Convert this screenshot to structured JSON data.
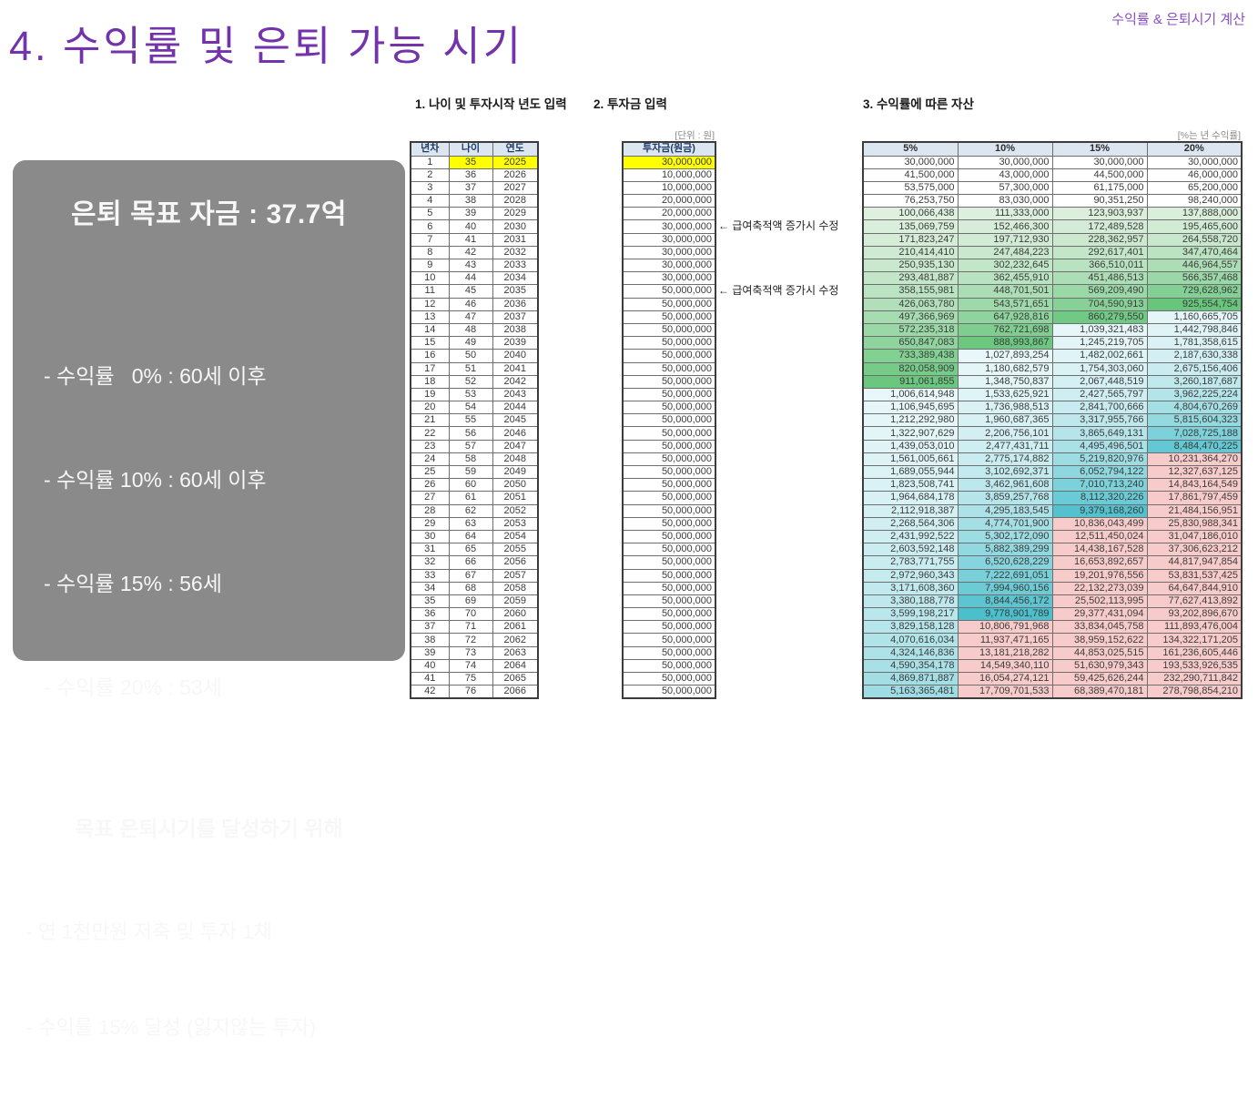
{
  "header": {
    "title": "4. 수익률 및 은퇴 가능 시기",
    "corner_note": "수익률 & 은퇴시기 계산",
    "accent_color": "#7233ab"
  },
  "sections": {
    "s1": "1. 나이 및 투자시작 년도 입력",
    "s2": "2. 투자금 입력",
    "s3": "3. 수익률에 따른 자산"
  },
  "labels": {
    "unit_won": "[단위 : 원]",
    "unit_rate": "[%는 년 수익률]"
  },
  "summary": {
    "goal": "은퇴 목표 자금 : 37.7억",
    "bullets": [
      "- 수익률   0% : 60세 이후",
      "- 수익률 10% : 60세 이후",
      "- 수익률 15% : 56세",
      "- 수익률 20% : 53세"
    ],
    "subtitle": "목표 은퇴시기를 달성하기 위해",
    "sub_bullets": [
      "- 연 1천만원 저축 및 투자 1채",
      "- 수익률 15% 달성 (잃지않는 투자)"
    ]
  },
  "table1": {
    "headers": [
      "년차",
      "나이",
      "연도"
    ],
    "highlight_row": 1,
    "rows": [
      [
        1,
        35,
        2025
      ],
      [
        2,
        36,
        2026
      ],
      [
        3,
        37,
        2027
      ],
      [
        4,
        38,
        2028
      ],
      [
        5,
        39,
        2029
      ],
      [
        6,
        40,
        2030
      ],
      [
        7,
        41,
        2031
      ],
      [
        8,
        42,
        2032
      ],
      [
        9,
        43,
        2033
      ],
      [
        10,
        44,
        2034
      ],
      [
        11,
        45,
        2035
      ],
      [
        12,
        46,
        2036
      ],
      [
        13,
        47,
        2037
      ],
      [
        14,
        48,
        2038
      ],
      [
        15,
        49,
        2039
      ],
      [
        16,
        50,
        2040
      ],
      [
        17,
        51,
        2041
      ],
      [
        18,
        52,
        2042
      ],
      [
        19,
        53,
        2043
      ],
      [
        20,
        54,
        2044
      ],
      [
        21,
        55,
        2045
      ],
      [
        22,
        56,
        2046
      ],
      [
        23,
        57,
        2047
      ],
      [
        24,
        58,
        2048
      ],
      [
        25,
        59,
        2049
      ],
      [
        26,
        60,
        2050
      ],
      [
        27,
        61,
        2051
      ],
      [
        28,
        62,
        2052
      ],
      [
        29,
        63,
        2053
      ],
      [
        30,
        64,
        2054
      ],
      [
        31,
        65,
        2055
      ],
      [
        32,
        66,
        2056
      ],
      [
        33,
        67,
        2057
      ],
      [
        34,
        68,
        2058
      ],
      [
        35,
        69,
        2059
      ],
      [
        36,
        70,
        2060
      ],
      [
        37,
        71,
        2061
      ],
      [
        38,
        72,
        2062
      ],
      [
        39,
        73,
        2063
      ],
      [
        40,
        74,
        2064
      ],
      [
        41,
        75,
        2065
      ],
      [
        42,
        76,
        2066
      ]
    ]
  },
  "table2": {
    "header": "투자금(원금)",
    "highlight_row": 1,
    "values": [
      30000000,
      10000000,
      10000000,
      20000000,
      20000000,
      30000000,
      30000000,
      30000000,
      30000000,
      30000000,
      50000000,
      50000000,
      50000000,
      50000000,
      50000000,
      50000000,
      50000000,
      50000000,
      50000000,
      50000000,
      50000000,
      50000000,
      50000000,
      50000000,
      50000000,
      50000000,
      50000000,
      50000000,
      50000000,
      50000000,
      50000000,
      50000000,
      50000000,
      50000000,
      50000000,
      50000000,
      50000000,
      50000000,
      50000000,
      50000000,
      50000000,
      50000000
    ]
  },
  "annotations": [
    {
      "text": "← 급여축적액 증가시 수정",
      "row": 6
    },
    {
      "text": "← 급여축적액 증가시 수정",
      "row": 11
    }
  ],
  "table3": {
    "headers": [
      "5%",
      "10%",
      "15%",
      "20%"
    ],
    "rows": [
      [
        30000000,
        30000000,
        30000000,
        30000000
      ],
      [
        41500000,
        43000000,
        44500000,
        46000000
      ],
      [
        53575000,
        57300000,
        61175000,
        65200000
      ],
      [
        76253750,
        83030000,
        90351250,
        98240000
      ],
      [
        100066438,
        111333000,
        123903937,
        137888000
      ],
      [
        135069759,
        152466300,
        172489528,
        195465600
      ],
      [
        171823247,
        197712930,
        228362957,
        264558720
      ],
      [
        210414410,
        247484223,
        292617401,
        347470464
      ],
      [
        250935130,
        302232645,
        366510011,
        446964557
      ],
      [
        293481887,
        362455910,
        451486513,
        566357468
      ],
      [
        358155981,
        448701501,
        569209490,
        729628962
      ],
      [
        426063780,
        543571651,
        704590913,
        925554754
      ],
      [
        497366969,
        647928816,
        860279550,
        1160665705
      ],
      [
        572235318,
        762721698,
        1039321483,
        1442798846
      ],
      [
        650847083,
        888993867,
        1245219705,
        1781358615
      ],
      [
        733389438,
        1027893254,
        1482002661,
        2187630338
      ],
      [
        820058909,
        1180682579,
        1754303060,
        2675156406
      ],
      [
        911061855,
        1348750837,
        2067448519,
        3260187687
      ],
      [
        1006614948,
        1533625921,
        2427565797,
        3962225224
      ],
      [
        1106945695,
        1736988513,
        2841700666,
        4804670269
      ],
      [
        1212292980,
        1960687365,
        3317955766,
        5815604323
      ],
      [
        1322907629,
        2206756101,
        3865649131,
        7028725188
      ],
      [
        1439053010,
        2477431711,
        4495496501,
        8484470225
      ],
      [
        1561005661,
        2775174882,
        5219820976,
        10231364270
      ],
      [
        1689055944,
        3102692371,
        6052794122,
        12327637125
      ],
      [
        1823508741,
        3462961608,
        7010713240,
        14843164549
      ],
      [
        1964684178,
        3859257768,
        8112320226,
        17861797459
      ],
      [
        2112918387,
        4295183545,
        9379168260,
        21484156951
      ],
      [
        2268564306,
        4774701900,
        10836043499,
        25830988341
      ],
      [
        2431992522,
        5302172090,
        12511450024,
        31047186010
      ],
      [
        2603592148,
        5882389299,
        14438167528,
        37306623212
      ],
      [
        2783771755,
        6520628229,
        16653892657,
        44817947854
      ],
      [
        2972960343,
        7222691051,
        19201976556,
        53831537425
      ],
      [
        3171608360,
        7994960156,
        22132273039,
        64647844910
      ],
      [
        3380188778,
        8844456172,
        25502113995,
        77627413892
      ],
      [
        3599198217,
        9778901789,
        29377431094,
        93202896670
      ],
      [
        3829158128,
        10806791968,
        33834045758,
        111893476004
      ],
      [
        4070616034,
        11937471165,
        38959152622,
        134322171205
      ],
      [
        4324146836,
        13181218282,
        44853025515,
        161236605446
      ],
      [
        4590354178,
        14549340110,
        51630979343,
        193533926535
      ],
      [
        4869871887,
        16054274121,
        59425626244,
        232290711842
      ],
      [
        5163365481,
        17709701533,
        68389470181,
        278798854210
      ]
    ]
  },
  "colors": {
    "header_fill": "#dce6f1",
    "input_highlight": "#ffff00",
    "green_low": "#dff0e0",
    "green_high": "#5cc273",
    "cyan_low": "#e8f7f9",
    "cyan_high": "#48becb",
    "pink": "#f8cbcb",
    "box_fill": "#8a8a8a",
    "accent": "#7233ab"
  }
}
